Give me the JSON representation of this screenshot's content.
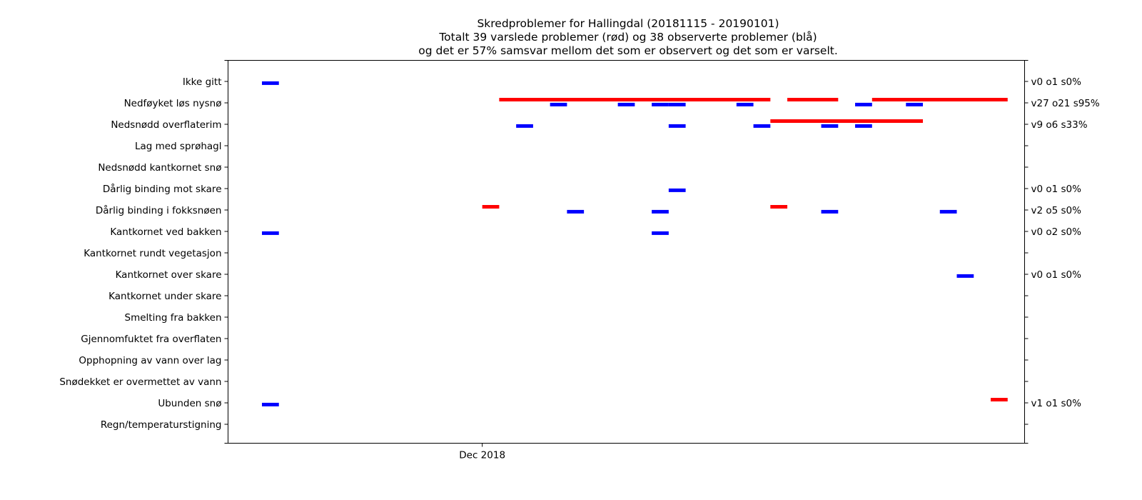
{
  "chart_data": {
    "type": "gantt",
    "title_lines": [
      "Skredproblemer for Hallingdal (20181115 - 20190101)",
      "Totalt 39 varslede problemer (rød) og 38 observerte problemer (blå)",
      "og det er 57% samsvar mellom det som er observert og det som er varselt."
    ],
    "x_range": [
      "2018-11-16",
      "2019-01-02"
    ],
    "x_ticks": [
      {
        "date": "2018-12-01",
        "label": "Dec 2018"
      }
    ],
    "categories": [
      "Ikke gitt",
      "Nedføyket løs nysnø",
      "Nedsnødd overflaterim",
      "Lag med sprøhagl",
      "Nedsnødd kantkornet snø",
      "Dårlig binding mot skare",
      "Dårlig binding i fokksnøen",
      "Kantkornet ved bakken",
      "Kantkornet rundt vegetasjon",
      "Kantkornet over skare",
      "Kantkornet under skare",
      "Smelting fra bakken",
      "Gjennomfuktet fra overflaten",
      "Opphopning av vann over lag",
      "Snødekket er overmettet av vann",
      "Ubunden snø",
      "Regn/temperaturstigning"
    ],
    "right_labels": [
      "v0 o1 s0%",
      "v27 o21 s95%",
      "v9 o6 s33%",
      "",
      "",
      "v0 o1 s0%",
      "v2 o5 s0%",
      "v0 o2 s0%",
      "",
      "v0 o1 s0%",
      "",
      "",
      "",
      "",
      "",
      "v1 o1 s0%",
      ""
    ],
    "series": [
      {
        "name": "varslet",
        "color": "#ff0000",
        "offset": -0.15,
        "segments": [
          {
            "category": "Nedføyket løs nysnø",
            "start": "2018-12-02",
            "end": "2018-12-18"
          },
          {
            "category": "Nedføyket løs nysnø",
            "start": "2018-12-19",
            "end": "2018-12-22"
          },
          {
            "category": "Nedføyket løs nysnø",
            "start": "2018-12-24",
            "end": "2019-01-01"
          },
          {
            "category": "Nedsnødd overflaterim",
            "start": "2018-12-18",
            "end": "2018-12-27"
          },
          {
            "category": "Dårlig binding i fokksnøen",
            "start": "2018-12-01",
            "end": "2018-12-02"
          },
          {
            "category": "Dårlig binding i fokksnøen",
            "start": "2018-12-18",
            "end": "2018-12-19"
          },
          {
            "category": "Ubunden snø",
            "start": "2018-12-31",
            "end": "2019-01-01"
          }
        ]
      },
      {
        "name": "observert",
        "color": "#0000ff",
        "offset": 0.08,
        "segments": [
          {
            "category": "Ikke gitt",
            "start": "2018-11-18",
            "end": "2018-11-19"
          },
          {
            "category": "Nedføyket løs nysnø",
            "start": "2018-12-05",
            "end": "2018-12-06"
          },
          {
            "category": "Nedføyket løs nysnø",
            "start": "2018-12-09",
            "end": "2018-12-10"
          },
          {
            "category": "Nedføyket løs nysnø",
            "start": "2018-12-11",
            "end": "2018-12-12"
          },
          {
            "category": "Nedføyket løs nysnø",
            "start": "2018-12-12",
            "end": "2018-12-13"
          },
          {
            "category": "Nedføyket løs nysnø",
            "start": "2018-12-16",
            "end": "2018-12-17"
          },
          {
            "category": "Nedføyket løs nysnø",
            "start": "2018-12-23",
            "end": "2018-12-24"
          },
          {
            "category": "Nedføyket løs nysnø",
            "start": "2018-12-26",
            "end": "2018-12-27"
          },
          {
            "category": "Nedsnødd overflaterim",
            "start": "2018-12-03",
            "end": "2018-12-04"
          },
          {
            "category": "Nedsnødd overflaterim",
            "start": "2018-12-12",
            "end": "2018-12-13"
          },
          {
            "category": "Nedsnødd overflaterim",
            "start": "2018-12-17",
            "end": "2018-12-18"
          },
          {
            "category": "Nedsnødd overflaterim",
            "start": "2018-12-21",
            "end": "2018-12-22"
          },
          {
            "category": "Nedsnødd overflaterim",
            "start": "2018-12-23",
            "end": "2018-12-24"
          },
          {
            "category": "Dårlig binding mot skare",
            "start": "2018-12-12",
            "end": "2018-12-13"
          },
          {
            "category": "Dårlig binding i fokksnøen",
            "start": "2018-12-06",
            "end": "2018-12-07"
          },
          {
            "category": "Dårlig binding i fokksnøen",
            "start": "2018-12-11",
            "end": "2018-12-12"
          },
          {
            "category": "Dårlig binding i fokksnøen",
            "start": "2018-12-21",
            "end": "2018-12-22"
          },
          {
            "category": "Dårlig binding i fokksnøen",
            "start": "2018-12-28",
            "end": "2018-12-29"
          },
          {
            "category": "Kantkornet ved bakken",
            "start": "2018-11-18",
            "end": "2018-11-19"
          },
          {
            "category": "Kantkornet ved bakken",
            "start": "2018-12-11",
            "end": "2018-12-12"
          },
          {
            "category": "Kantkornet over skare",
            "start": "2018-12-29",
            "end": "2018-12-30"
          },
          {
            "category": "Ubunden snø",
            "start": "2018-11-18",
            "end": "2018-11-19"
          }
        ]
      }
    ],
    "grid": false,
    "legend": "none"
  }
}
